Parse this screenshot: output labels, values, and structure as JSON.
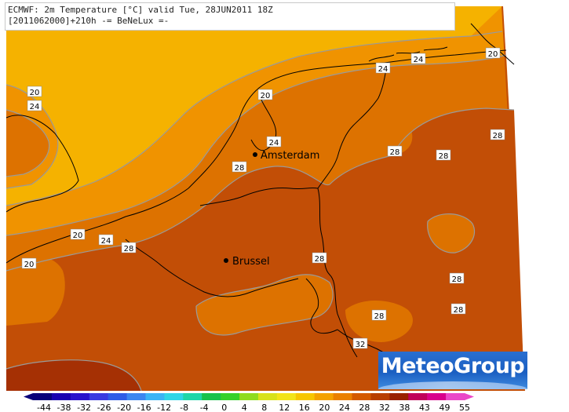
{
  "header": {
    "line1": "ECMWF: 2m Temperature [°C] valid Tue, 28JUN2011 18Z",
    "line2": "[2011062000]+210h -= BeNeLux =-"
  },
  "brand": "MeteoGroup",
  "cities": [
    {
      "name": "Amsterdam"
    },
    {
      "name": "Brussel"
    }
  ],
  "contour_labels": [
    "20",
    "24",
    "24",
    "20",
    "24",
    "20",
    "24",
    "28",
    "28",
    "28",
    "20",
    "24",
    "28",
    "20",
    "28",
    "28",
    "28",
    "28",
    "28",
    "32"
  ],
  "legend": {
    "ticks": [
      "-44",
      "-38",
      "-32",
      "-26",
      "-20",
      "-16",
      "-12",
      "-8",
      "-4",
      "0",
      "4",
      "8",
      "12",
      "16",
      "20",
      "24",
      "28",
      "32",
      "38",
      "43",
      "49",
      "55"
    ],
    "colors": [
      "#08007a",
      "#1a00b0",
      "#2a12cc",
      "#3a3ae0",
      "#2f5ce6",
      "#3c86f0",
      "#3ab4f5",
      "#2fd6e6",
      "#1fd6a8",
      "#17c24c",
      "#35d12a",
      "#8fdc1e",
      "#d8e21a",
      "#f2e419",
      "#f7c600",
      "#f4a200",
      "#ea8000",
      "#d45a00",
      "#b83e00",
      "#9a2200",
      "#c0005a",
      "#d8008c",
      "#ea48c8"
    ]
  },
  "palette": {
    "t16_20": "#f5b200",
    "t20_24": "#f09300",
    "t24_28": "#dd7200",
    "t28_32": "#c24e06",
    "t32_36": "#a53004",
    "contour": "#9a9a9a",
    "border": "#000000"
  }
}
